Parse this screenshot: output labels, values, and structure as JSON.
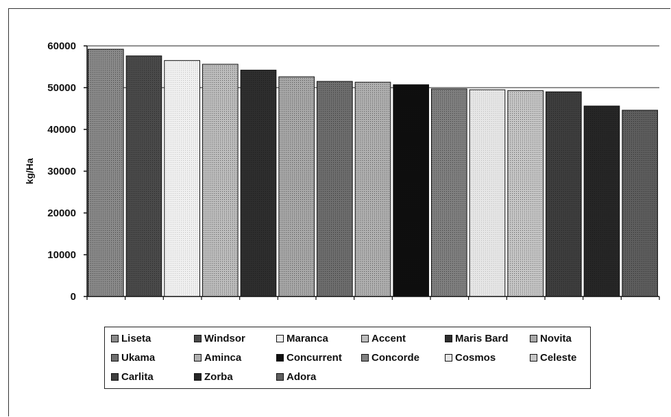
{
  "chart_data": {
    "type": "bar",
    "title": "",
    "xlabel": "",
    "ylabel": "kg/Ha",
    "ylim": [
      0,
      60000
    ],
    "yticks": [
      "0",
      "10000",
      "20000",
      "30000",
      "40000",
      "50000",
      "60000"
    ],
    "grid": "horizontal gridlines at 50000 and 60000",
    "legend_position": "bottom",
    "categories": [
      "Liseta",
      "Windsor",
      "Maranca",
      "Accent",
      "Maris Bard",
      "Novita",
      "Ukama",
      "Aminca",
      "Concurrent",
      "Concorde",
      "Cosmos",
      "Celeste",
      "Carlita",
      "Zorba",
      "Adora"
    ],
    "values": [
      59200,
      57600,
      56500,
      55600,
      54200,
      52600,
      51500,
      51300,
      50700,
      49700,
      49500,
      49300,
      49000,
      45600,
      44600
    ],
    "colors": [
      "#8a8a8a",
      "#4a4a4a",
      "#f0f0f0",
      "#bdbdbd",
      "#2e2e2e",
      "#a8a8a8",
      "#6e6e6e",
      "#b0b0b0",
      "#0e0e0e",
      "#808080",
      "#e6e6e6",
      "#c6c6c6",
      "#3e3e3e",
      "#262626",
      "#5e5e5e"
    ]
  }
}
